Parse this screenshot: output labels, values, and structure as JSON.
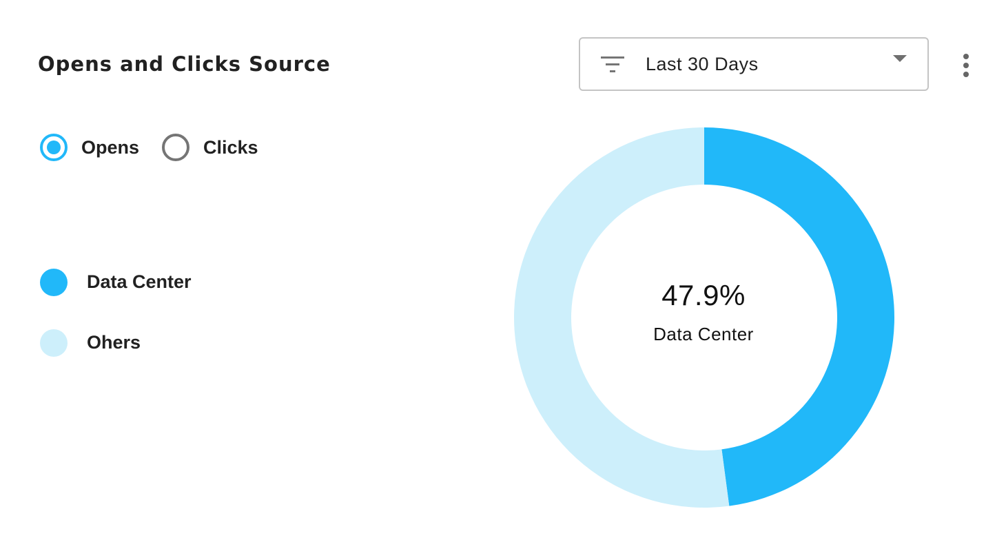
{
  "card": {
    "title": "Opens and Clicks Source"
  },
  "period_select": {
    "icon": "filter-icon",
    "value": "Last 30 Days"
  },
  "more_menu": {
    "icon": "more-vertical-icon"
  },
  "metric_toggle": {
    "options": [
      {
        "label": "Opens",
        "checked": true
      },
      {
        "label": "Clicks",
        "checked": false
      }
    ]
  },
  "legend": {
    "items": [
      {
        "label": "Data Center",
        "color": "#21b8f9"
      },
      {
        "label": "Ohers",
        "color": "#cdeffb"
      }
    ]
  },
  "center": {
    "value": "47.9%",
    "label": "Data Center"
  },
  "chart_data": {
    "type": "pie",
    "donut": true,
    "categories": [
      "Data Center",
      "Ohers"
    ],
    "values": [
      47.9,
      52.1
    ],
    "colors": [
      "#21b8f9",
      "#cdeffb"
    ],
    "start_angle": "top",
    "direction": "clockwise",
    "center_text": "47.9%",
    "center_subtext": "Data Center"
  }
}
